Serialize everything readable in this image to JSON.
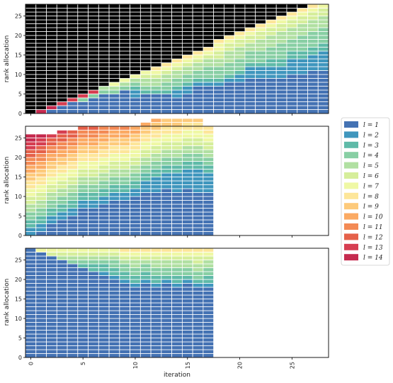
{
  "chart_data": {
    "type": "bar",
    "subtype": "stacked",
    "xlabel": "iteration",
    "ylabel": "rank allocation",
    "xticks": [
      0,
      5,
      10,
      15,
      20,
      25
    ],
    "yticks": [
      0,
      5,
      10,
      15,
      20,
      25
    ],
    "xlim": [
      -0.5,
      28.5
    ],
    "ylim": [
      0,
      28
    ],
    "grid": false,
    "legend_position": "right, outside plots",
    "legend": [
      "l = 1",
      "l = 2",
      "l = 3",
      "l = 4",
      "l = 5",
      "l = 6",
      "l = 7",
      "l = 8",
      "l = 9",
      "l = 10",
      "l = 11",
      "l = 12",
      "l = 13",
      "l = 14"
    ],
    "series_colors": [
      "#4472b3",
      "#3f96bd",
      "#5fbaa8",
      "#88cfa4",
      "#b1e0a2",
      "#d6ee9b",
      "#eff8a5",
      "#fde69a",
      "#fdca7b",
      "#fbaa63",
      "#f38a55",
      "#e5614a",
      "#d63e51",
      "#c52a4e"
    ],
    "panels": [
      {
        "name": "top",
        "iterations": [
          0,
          1,
          2,
          3,
          4,
          5,
          6,
          7,
          8,
          9,
          10,
          11,
          12,
          13,
          14,
          15,
          16,
          17,
          18,
          19,
          20,
          21,
          22,
          23,
          24,
          25,
          26,
          27,
          28
        ],
        "stacks": [
          [
            0,
            0,
            0,
            0,
            0,
            0,
            0,
            0,
            0,
            0,
            0,
            0,
            0,
            0,
            28
          ],
          [
            0,
            0,
            0,
            0,
            0,
            0,
            0,
            0,
            0,
            0,
            0,
            0,
            0,
            1,
            27
          ],
          [
            1,
            0,
            0,
            0,
            0,
            0,
            0,
            0,
            0,
            0,
            0,
            0,
            0,
            1,
            26
          ],
          [
            2,
            0,
            0,
            0,
            0,
            0,
            0,
            0,
            0,
            0,
            0,
            0,
            1,
            0,
            25
          ],
          [
            3,
            0,
            0,
            0,
            0,
            0,
            0,
            0,
            0,
            0,
            0,
            0,
            1,
            0,
            24
          ],
          [
            3,
            0,
            0,
            1,
            0,
            0,
            0,
            0,
            0,
            0,
            0,
            0,
            1,
            0,
            23
          ],
          [
            4,
            0,
            0,
            1,
            0,
            0,
            0,
            0,
            0,
            0,
            0,
            0,
            1,
            0,
            22
          ],
          [
            5,
            0,
            0,
            1,
            1,
            0,
            0,
            0,
            0,
            0,
            0,
            0,
            0,
            0,
            21
          ],
          [
            5,
            0,
            0,
            1,
            1,
            0,
            1,
            0,
            0,
            0,
            0,
            0,
            0,
            0,
            20
          ],
          [
            6,
            0,
            0,
            1,
            1,
            0,
            1,
            0,
            0,
            0,
            0,
            0,
            0,
            0,
            19
          ],
          [
            4,
            2,
            1,
            1,
            1,
            0,
            1,
            0,
            0,
            0,
            0,
            0,
            0,
            0,
            18
          ],
          [
            5,
            0,
            1,
            1,
            2,
            1,
            1,
            0,
            0,
            0,
            0,
            0,
            0,
            0,
            17
          ],
          [
            5,
            0,
            1,
            1,
            2,
            1,
            1,
            1,
            0,
            0,
            0,
            0,
            0,
            0,
            16
          ],
          [
            5,
            0,
            1,
            2,
            2,
            1,
            1,
            1,
            0,
            0,
            0,
            0,
            0,
            0,
            15
          ],
          [
            4,
            2,
            1,
            2,
            2,
            1,
            1,
            1,
            0,
            0,
            0,
            0,
            0,
            0,
            14
          ],
          [
            5,
            2,
            1,
            2,
            2,
            1,
            1,
            1,
            0,
            0,
            0,
            0,
            0,
            0,
            13
          ],
          [
            7,
            1,
            1,
            2,
            2,
            1,
            1,
            1,
            0,
            0,
            0,
            0,
            0,
            0,
            12
          ],
          [
            7,
            1,
            1,
            3,
            2,
            1,
            1,
            1,
            0,
            0,
            0,
            0,
            0,
            0,
            11
          ],
          [
            7,
            1,
            1,
            3,
            2,
            2,
            2,
            1,
            0,
            0,
            0,
            0,
            0,
            0,
            9
          ],
          [
            8,
            1,
            1,
            3,
            3,
            2,
            1,
            1,
            0,
            0,
            0,
            0,
            0,
            0,
            8
          ],
          [
            8,
            2,
            1,
            3,
            3,
            2,
            1,
            1,
            0,
            0,
            0,
            0,
            0,
            0,
            7
          ],
          [
            9,
            3,
            1,
            3,
            2,
            2,
            1,
            1,
            0,
            0,
            0,
            0,
            0,
            0,
            6
          ],
          [
            9,
            3,
            1,
            3,
            3,
            2,
            1,
            1,
            0,
            0,
            0,
            0,
            0,
            0,
            5
          ],
          [
            9,
            3,
            2,
            3,
            3,
            2,
            1,
            1,
            0,
            0,
            0,
            0,
            0,
            0,
            4
          ],
          [
            9,
            3,
            2,
            4,
            3,
            2,
            1,
            1,
            0,
            0,
            0,
            0,
            0,
            0,
            3
          ],
          [
            10,
            4,
            2,
            3,
            3,
            2,
            1,
            1,
            0,
            0,
            0,
            0,
            0,
            0,
            2
          ],
          [
            10,
            4,
            2,
            4,
            3,
            2,
            1,
            1,
            0,
            0,
            0,
            0,
            0,
            0,
            1
          ],
          [
            11,
            4,
            2,
            4,
            3,
            2,
            1,
            1,
            0,
            0,
            0,
            0,
            0,
            0,
            0
          ],
          [
            11,
            5,
            2,
            4,
            3,
            2,
            1,
            0,
            0,
            0,
            0,
            0,
            0,
            0,
            0
          ]
        ]
      },
      {
        "name": "middle",
        "iterations": [
          0,
          1,
          2,
          3,
          4,
          5,
          6,
          7,
          8,
          9,
          10,
          11,
          12,
          13,
          14,
          15,
          16,
          17
        ],
        "stacks": [
          [
            0,
            2,
            2,
            2,
            2,
            2,
            2,
            2,
            2,
            2,
            2,
            2,
            2,
            2
          ],
          [
            1,
            2,
            2,
            2,
            2,
            2,
            2,
            2,
            2,
            2,
            2,
            2,
            2,
            1
          ],
          [
            3,
            2,
            2,
            2,
            2,
            2,
            2,
            2,
            2,
            2,
            2,
            2,
            1,
            0
          ],
          [
            4,
            2,
            2,
            2,
            2,
            2,
            2,
            2,
            2,
            2,
            2,
            2,
            1,
            0
          ],
          [
            5,
            2,
            2,
            2,
            2,
            2,
            2,
            2,
            2,
            2,
            2,
            2,
            0,
            0
          ],
          [
            7,
            2,
            2,
            2,
            2,
            2,
            2,
            2,
            2,
            2,
            2,
            1,
            0,
            0
          ],
          [
            7,
            2,
            2,
            2,
            2,
            2,
            2,
            2,
            2,
            2,
            2,
            1,
            0,
            0
          ],
          [
            8,
            2,
            2,
            2,
            2,
            2,
            2,
            2,
            2,
            2,
            2,
            0,
            0,
            0
          ],
          [
            9,
            2,
            2,
            2,
            2,
            2,
            2,
            2,
            2,
            2,
            1,
            0,
            0,
            0
          ],
          [
            9,
            2,
            2,
            2,
            2,
            2,
            2,
            2,
            2,
            2,
            1,
            0,
            0,
            0
          ],
          [
            10,
            2,
            2,
            2,
            2,
            2,
            2,
            2,
            2,
            2,
            0,
            0,
            0,
            0
          ],
          [
            11,
            3,
            2,
            2,
            2,
            2,
            2,
            2,
            2,
            1,
            0,
            0,
            0,
            0
          ],
          [
            11,
            4,
            2,
            2,
            2,
            2,
            2,
            2,
            2,
            1,
            0,
            0,
            0,
            0
          ],
          [
            12,
            4,
            2,
            2,
            2,
            2,
            2,
            2,
            2,
            0,
            0,
            0,
            0,
            0
          ],
          [
            11,
            5,
            2,
            2,
            2,
            2,
            2,
            2,
            2,
            0,
            0,
            0,
            0,
            0
          ],
          [
            12,
            5,
            2,
            2,
            2,
            2,
            2,
            2,
            1,
            0,
            0,
            0,
            0,
            0
          ],
          [
            11,
            6,
            2,
            2,
            2,
            2,
            2,
            2,
            1,
            0,
            0,
            0,
            0,
            0
          ],
          [
            11,
            5,
            2,
            2,
            2,
            2,
            2,
            2,
            0,
            0,
            0,
            0,
            0,
            0
          ]
        ]
      },
      {
        "name": "bottom",
        "iterations": [
          0,
          1,
          2,
          3,
          4,
          5,
          6,
          7,
          8,
          9,
          10,
          11,
          12,
          13,
          14,
          15,
          16,
          17
        ],
        "stacks": [
          [
            28,
            0,
            0,
            0,
            0,
            0,
            0,
            0,
            0,
            0,
            0,
            0,
            0,
            0
          ],
          [
            27,
            0,
            0,
            0,
            0,
            0,
            1,
            0,
            0,
            0,
            0,
            0,
            0,
            0
          ],
          [
            26,
            0,
            0,
            0,
            0,
            1,
            1,
            0,
            0,
            0,
            0,
            0,
            0,
            0
          ],
          [
            25,
            0,
            0,
            0,
            1,
            1,
            1,
            0,
            0,
            0,
            0,
            0,
            0,
            0
          ],
          [
            24,
            0,
            0,
            1,
            1,
            1,
            1,
            0,
            0,
            0,
            0,
            0,
            0,
            0
          ],
          [
            23,
            0,
            1,
            1,
            1,
            1,
            1,
            0,
            0,
            0,
            0,
            0,
            0,
            0
          ],
          [
            22,
            0,
            2,
            1,
            1,
            1,
            1,
            0,
            0,
            0,
            0,
            0,
            0,
            0
          ],
          [
            21,
            1,
            2,
            1,
            1,
            1,
            1,
            0,
            0,
            0,
            0,
            0,
            0,
            0
          ],
          [
            20,
            1,
            2,
            2,
            1,
            1,
            1,
            0,
            0,
            0,
            0,
            0,
            0,
            0
          ],
          [
            19,
            1,
            2,
            2,
            1,
            1,
            1,
            1,
            0,
            0,
            0,
            0,
            0,
            0
          ],
          [
            18,
            1,
            2,
            2,
            2,
            1,
            1,
            1,
            0,
            0,
            0,
            0,
            0,
            0
          ],
          [
            19,
            1,
            2,
            2,
            1,
            1,
            1,
            1,
            0,
            0,
            0,
            0,
            0,
            0
          ],
          [
            18,
            1,
            2,
            2,
            2,
            1,
            1,
            1,
            0,
            0,
            0,
            0,
            0,
            0
          ],
          [
            19,
            1,
            1,
            2,
            2,
            1,
            1,
            1,
            0,
            0,
            0,
            0,
            0,
            0
          ],
          [
            18,
            1,
            2,
            2,
            2,
            1,
            1,
            1,
            0,
            0,
            0,
            0,
            0,
            0
          ],
          [
            19,
            1,
            1,
            2,
            2,
            1,
            1,
            1,
            0,
            0,
            0,
            0,
            0,
            0
          ],
          [
            18,
            1,
            1,
            2,
            2,
            2,
            1,
            1,
            0,
            0,
            0,
            0,
            0,
            0
          ],
          [
            18,
            1,
            2,
            2,
            2,
            1,
            1,
            1,
            0,
            0,
            0,
            0,
            0,
            0
          ]
        ]
      }
    ]
  }
}
